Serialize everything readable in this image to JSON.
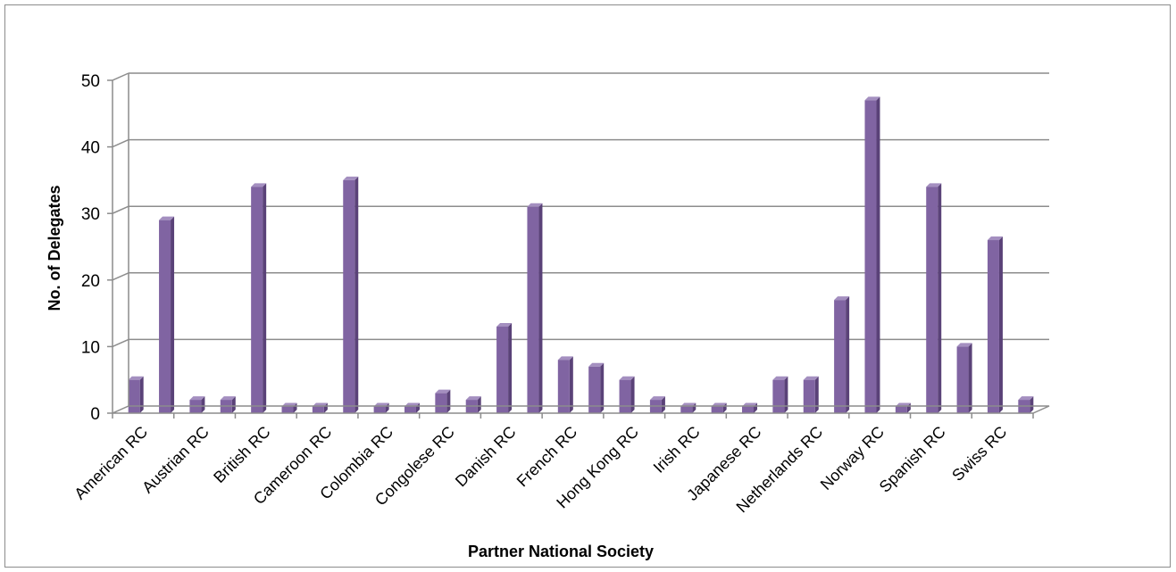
{
  "chart_data": {
    "type": "bar",
    "title": "",
    "xlabel": "Partner National Society",
    "ylabel": "No. of Delegates",
    "ylim": [
      0,
      50
    ],
    "yticks": [
      0,
      10,
      20,
      30,
      40,
      50
    ],
    "grid": true,
    "legend": "none",
    "bar_color": "#8064a2",
    "categories": [
      "American RC",
      "",
      "Austrian RC",
      "",
      "British RC",
      "",
      "Cameroon RC",
      "",
      "Colombia RC",
      "",
      "Congolese RC",
      "",
      "Danish RC",
      "",
      "French RC",
      "",
      "Hong Kong RC",
      "",
      "Irish RC",
      "",
      "Japanese RC",
      "",
      "Netherlands RC",
      "",
      "Norway RC",
      "",
      "Spanish RC",
      "",
      "Swiss RC",
      ""
    ],
    "values": [
      5,
      29,
      2,
      2,
      34,
      1,
      1,
      35,
      1,
      1,
      3,
      2,
      13,
      31,
      8,
      7,
      5,
      2,
      1,
      1,
      1,
      5,
      5,
      17,
      47,
      1,
      34,
      10,
      26,
      2
    ]
  }
}
